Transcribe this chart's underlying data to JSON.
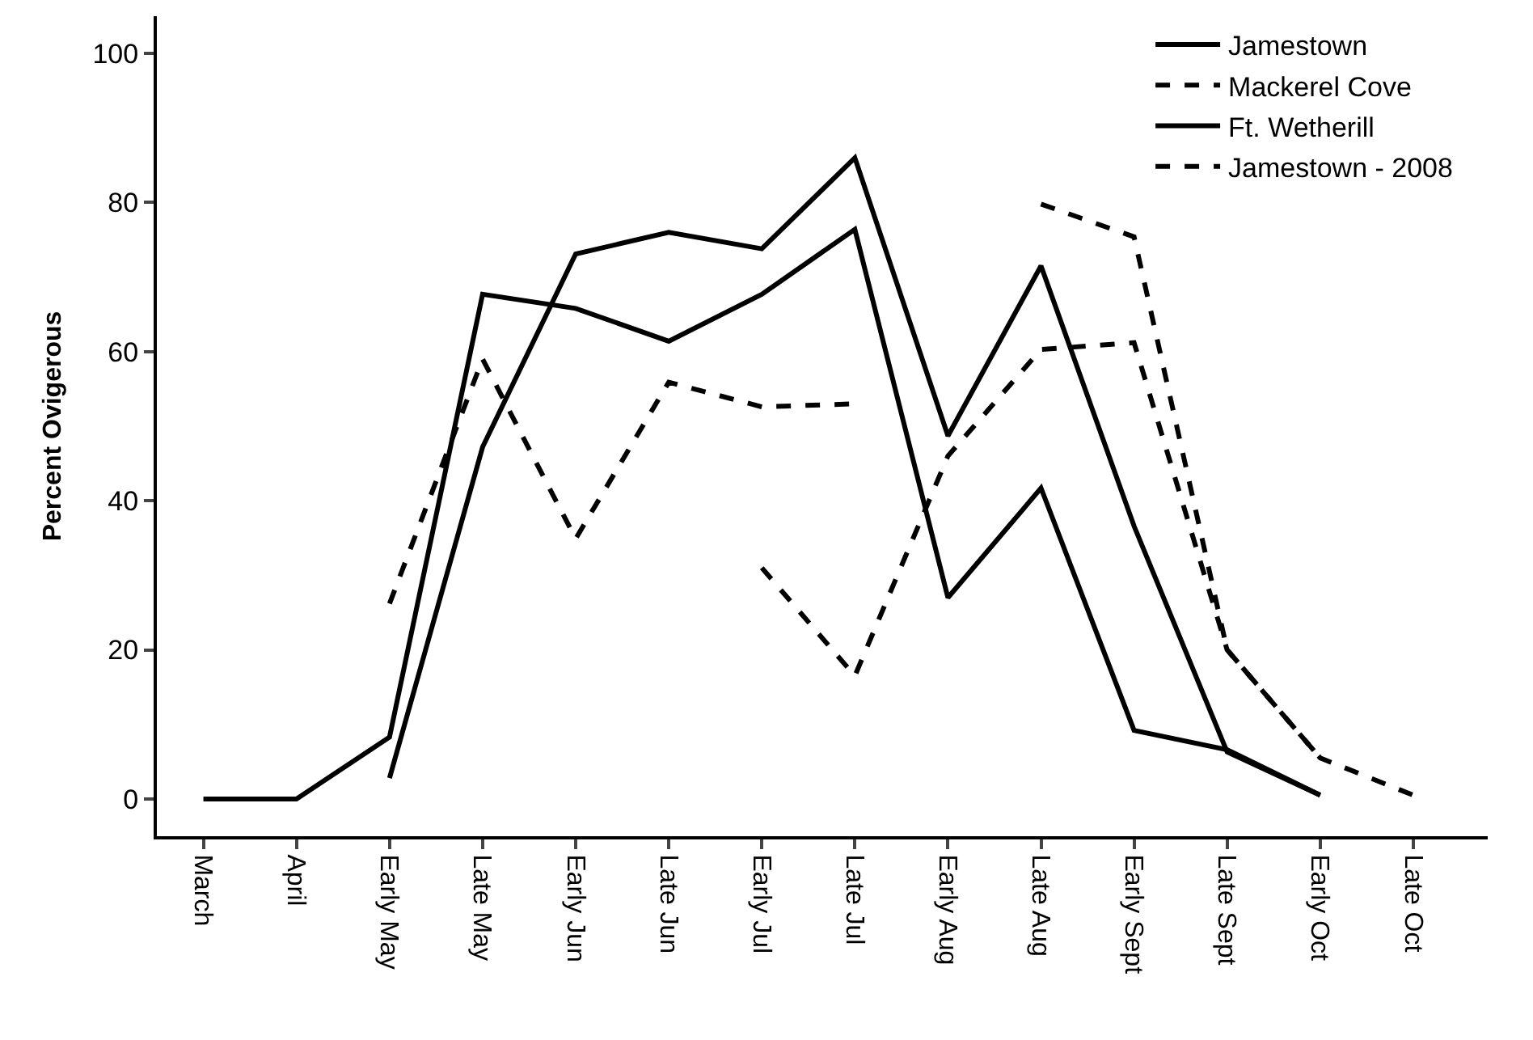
{
  "chart_data": {
    "type": "line",
    "ylabel": "Percent Ovigerous",
    "categories": [
      "March",
      "April",
      "Early May",
      "Late May",
      "Early Jun",
      "Late Jun",
      "Early Jul",
      "Late Jul",
      "Early Aug",
      "Late Aug",
      "Early Sept",
      "Late Sept",
      "Early Oct",
      "Late Oct"
    ],
    "series": [
      {
        "name": "Jamestown",
        "color": "#000000",
        "line_style": "solid",
        "values": [
          0,
          0,
          8.3,
          67.7,
          65.8,
          61.4,
          67.7,
          76.4,
          27,
          41.7,
          9.2,
          6.6,
          0.5,
          null
        ]
      },
      {
        "name": "Mackerel Cove",
        "color": "#000000",
        "line_style": "dashed",
        "values": [
          null,
          null,
          26.2,
          59,
          34.9,
          55.9,
          52.6,
          53,
          null,
          79.8,
          75.4,
          20,
          5.5,
          null
        ]
      },
      {
        "name": "Ft. Wetherill",
        "color": "#000000",
        "line_style": "solid",
        "values": [
          null,
          null,
          2.8,
          47.2,
          73.1,
          76,
          73.8,
          86,
          48.7,
          71.5,
          36.6,
          6.3,
          0.5,
          null
        ]
      },
      {
        "name": "Jamestown - 2008",
        "color": "#000000",
        "line_style": "dashed",
        "values": [
          null,
          null,
          null,
          null,
          null,
          null,
          31,
          16.5,
          46,
          60.3,
          61.2,
          20,
          5.5,
          0.5
        ]
      }
    ],
    "ylim": [
      -5,
      105
    ],
    "yticks": [
      0,
      20,
      40,
      60,
      80,
      100
    ],
    "legend": "top right",
    "marker": "none"
  }
}
